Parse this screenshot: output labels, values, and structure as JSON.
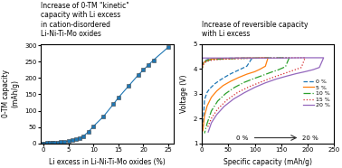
{
  "chart_data": [
    {
      "type": "line",
      "title": "Increase of 0-TM \"kinetic\"\ncapacity with Li excess\nin cation-disordered\nLi-Ni-Ti-Mo oxides",
      "x_label": "Li excess in Li-Ni-Ti-Mo oxides (%)",
      "y_label": "0-TM capacity\n(mAh/g)",
      "xlim": [
        -0.5,
        26
      ],
      "ylim": [
        0,
        305
      ],
      "xticks": [
        0,
        5,
        10,
        15,
        20,
        25
      ],
      "yticks": [
        0,
        50,
        100,
        150,
        200,
        250,
        300
      ],
      "marker": "square",
      "x": [
        -0.2,
        0.2,
        0.8,
        1.2,
        1.8,
        2.2,
        2.8,
        3.5,
        4.2,
        5,
        5.8,
        6.5,
        7.2,
        8,
        9,
        10,
        12,
        14,
        15,
        17,
        19,
        20,
        21,
        22,
        25
      ],
      "values": [
        0,
        0,
        0.5,
        1,
        1.5,
        2,
        3,
        4,
        5,
        7,
        9,
        12,
        16,
        22,
        35,
        52,
        82,
        120,
        140,
        175,
        210,
        225,
        240,
        255,
        295
      ]
    },
    {
      "type": "line",
      "title": "Increase of reversible capacity\nwith Li excess",
      "x_label": "Specific capacity (mAh/g)",
      "y_label": "Voltage (V)",
      "xlim": [
        0,
        250
      ],
      "ylim": [
        1,
        5
      ],
      "xticks": [
        0,
        50,
        100,
        150,
        200,
        250
      ],
      "yticks": [
        1,
        2,
        3,
        4,
        5
      ],
      "legend": "center right",
      "series": [
        {
          "name": "0 %",
          "line_style": "dashed",
          "x": [
            0,
            1,
            2,
            3,
            4,
            5,
            8,
            12,
            20,
            30,
            50,
            70,
            80,
            90,
            95,
            85,
            75,
            65,
            55,
            45,
            35,
            25,
            15,
            10,
            5,
            2
          ],
          "values": [
            3.88,
            4.15,
            4.22,
            4.25,
            4.28,
            4.3,
            4.35,
            4.38,
            4.4,
            4.41,
            4.42,
            4.43,
            4.43,
            4.43,
            4.43,
            4.1,
            4.0,
            3.9,
            3.8,
            3.68,
            3.55,
            3.4,
            3.2,
            3.05,
            2.75,
            1.55
          ]
        },
        {
          "name": "5 %",
          "line_style": "solid",
          "x": [
            0,
            1,
            2,
            3,
            5,
            8,
            15,
            25,
            40,
            60,
            80,
            100,
            115,
            125,
            120,
            110,
            100,
            85,
            70,
            55,
            40,
            28,
            18,
            10,
            5,
            2
          ],
          "values": [
            3.85,
            4.1,
            4.18,
            4.22,
            4.27,
            4.32,
            4.37,
            4.4,
            4.41,
            4.42,
            4.43,
            4.43,
            4.44,
            4.44,
            4.1,
            3.98,
            3.88,
            3.78,
            3.65,
            3.5,
            3.32,
            3.1,
            2.85,
            2.5,
            2.1,
            1.5
          ]
        },
        {
          "name": "10 %",
          "line_style": "dashdot",
          "x": [
            0,
            1,
            2,
            3,
            5,
            8,
            15,
            30,
            50,
            80,
            110,
            140,
            155,
            165,
            158,
            145,
            130,
            115,
            98,
            80,
            62,
            45,
            30,
            18,
            10,
            5
          ],
          "values": [
            3.82,
            4.08,
            4.15,
            4.2,
            4.25,
            4.3,
            4.35,
            4.38,
            4.4,
            4.42,
            4.43,
            4.44,
            4.44,
            4.44,
            4.08,
            3.96,
            3.85,
            3.73,
            3.6,
            3.45,
            3.25,
            3.0,
            2.7,
            2.3,
            1.8,
            1.4
          ]
        },
        {
          "name": "15 %",
          "line_style": "dotted",
          "x": [
            0,
            1,
            2,
            3,
            5,
            8,
            15,
            30,
            60,
            100,
            140,
            170,
            185,
            195,
            188,
            175,
            160,
            145,
            128,
            110,
            90,
            68,
            48,
            30,
            18,
            10
          ],
          "values": [
            3.8,
            4.05,
            4.12,
            4.17,
            4.22,
            4.28,
            4.33,
            4.37,
            4.4,
            4.42,
            4.43,
            4.44,
            4.44,
            4.44,
            4.05,
            3.95,
            3.84,
            3.73,
            3.6,
            3.45,
            3.28,
            3.05,
            2.75,
            2.38,
            2.0,
            1.6
          ]
        },
        {
          "name": "20 %",
          "line_style": "solid",
          "x": [
            0,
            0.5,
            1,
            2,
            3,
            5,
            8,
            15,
            30,
            60,
            100,
            150,
            190,
            215,
            225,
            230,
            222,
            210,
            195,
            178,
            160,
            140,
            120,
            100,
            80,
            60,
            42,
            28,
            18,
            12
          ],
          "values": [
            2.88,
            4.38,
            4.42,
            4.43,
            4.43,
            4.43,
            4.43,
            4.43,
            4.43,
            4.43,
            4.43,
            4.43,
            4.44,
            4.44,
            4.44,
            4.44,
            4.05,
            3.96,
            3.88,
            3.8,
            3.7,
            3.58,
            3.43,
            3.25,
            3.03,
            2.78,
            2.48,
            2.15,
            1.82,
            1.45
          ]
        }
      ],
      "arrow": {
        "x_start": 95,
        "x_end": 185,
        "y": 1.22,
        "start_label": {
          "text": "0 %",
          "x": 88
        },
        "end_label": {
          "text": "20 %",
          "x": 190
        }
      }
    }
  ]
}
